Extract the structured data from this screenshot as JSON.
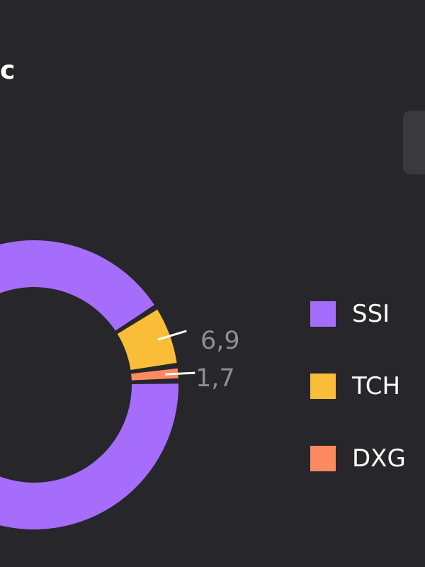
{
  "header": {
    "title_fragment": "c"
  },
  "colors": {
    "background": "#27262b",
    "panel": "#3a393e"
  },
  "chart_data": {
    "type": "pie",
    "style": "donut",
    "categories": [
      "SSI",
      "TCH",
      "DXG"
    ],
    "values": [
      91.4,
      6.9,
      1.7
    ],
    "data_labels": [
      "",
      "6,9",
      "1,7"
    ],
    "colors": [
      "#a66dfc",
      "#f9bd38",
      "#fe8a62"
    ],
    "legend": {
      "position": "right",
      "entries": [
        "SSI",
        "TCH",
        "DXG"
      ]
    }
  }
}
